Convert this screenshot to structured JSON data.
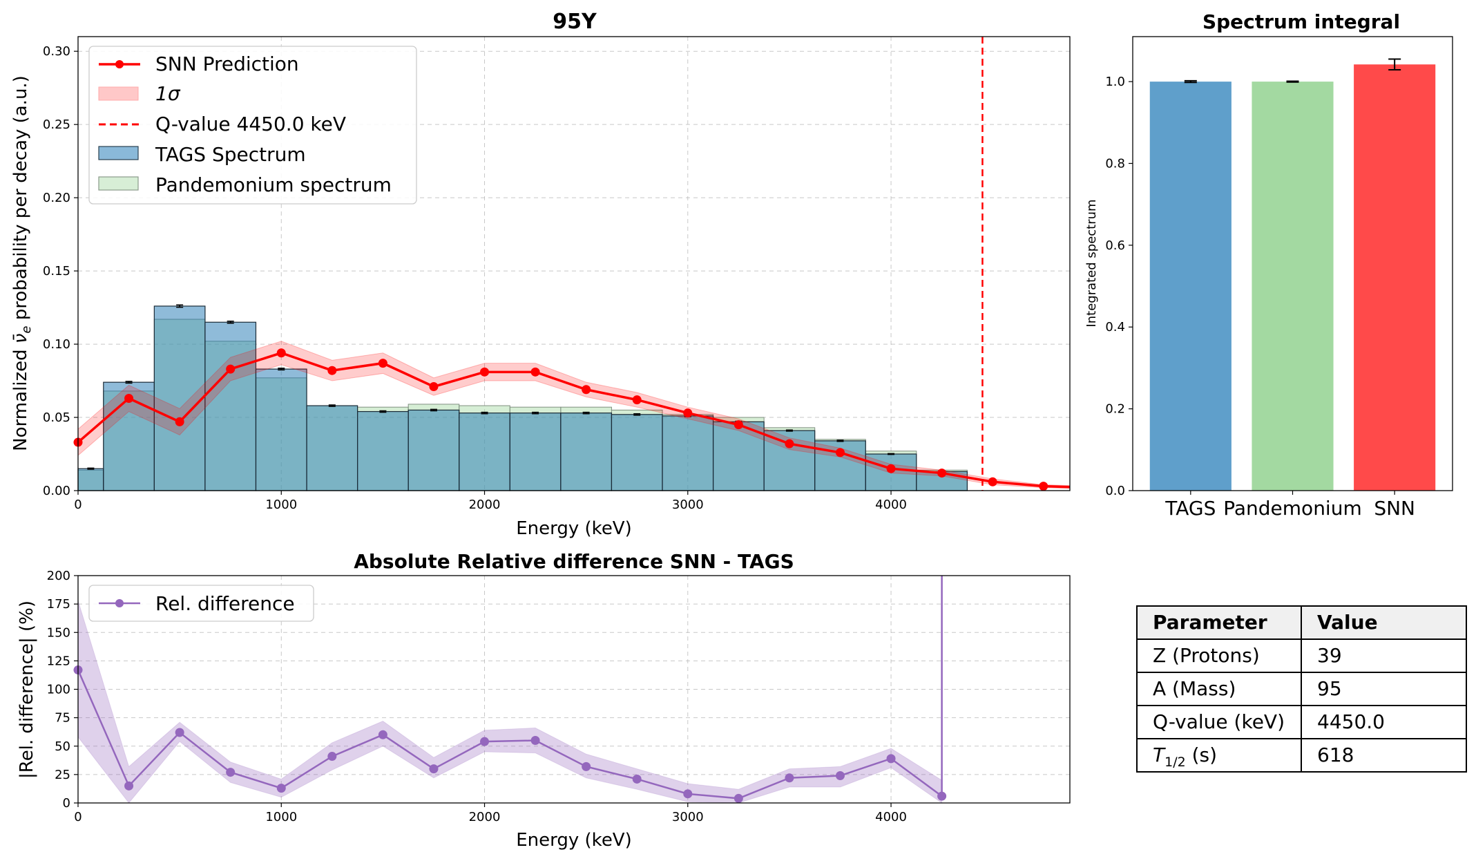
{
  "main": {
    "title": "95Y",
    "xlabel": "Energy (keV)",
    "ylabel_parts": [
      "Normalized ",
      "ν̄",
      "e",
      " probability per decay (a.u.)"
    ],
    "xlim": [
      0,
      4880
    ],
    "ylim": [
      0,
      0.31
    ],
    "xticks": [
      0,
      1000,
      2000,
      3000,
      4000
    ],
    "yticks": [
      0.0,
      0.05,
      0.1,
      0.15,
      0.2,
      0.25,
      0.3
    ],
    "ytick_labels": [
      "0.00",
      "0.05",
      "0.10",
      "0.15",
      "0.20",
      "0.25",
      "0.30"
    ],
    "legend": {
      "snn": "SNN Prediction",
      "sigma": "1σ",
      "qvalue": "Q-value 4450.0 keV",
      "tags": "TAGS Spectrum",
      "pandemonium": "Pandemonium spectrum"
    }
  },
  "integral": {
    "title": "Spectrum integral",
    "ylabel": "Integrated spectrum",
    "categories": [
      "TAGS",
      "Pandemonium",
      "SNN"
    ],
    "values": [
      1.0,
      1.0,
      1.042
    ],
    "errors": [
      0.002,
      0.001,
      0.013
    ],
    "colors": [
      "#5f9fcb",
      "#a3d9a1",
      "#ff4a4a"
    ],
    "ylim": [
      0,
      1.11
    ],
    "yticks": [
      0.0,
      0.2,
      0.4,
      0.6,
      0.8,
      1.0
    ],
    "ytick_labels": [
      "0.0",
      "0.2",
      "0.4",
      "0.6",
      "0.8",
      "1.0"
    ]
  },
  "reldiff": {
    "title": "Absolute Relative difference SNN - TAGS",
    "xlabel": "Energy (keV)",
    "ylabel": "|Rel. difference| (%)",
    "legend": "Rel. difference",
    "xlim": [
      0,
      4880
    ],
    "ylim": [
      0,
      200
    ],
    "xticks": [
      0,
      1000,
      2000,
      3000,
      4000
    ],
    "yticks": [
      0,
      25,
      50,
      75,
      100,
      125,
      150,
      175,
      200
    ]
  },
  "table": {
    "headers": [
      "Parameter",
      "Value"
    ],
    "rows": [
      [
        "Z (Protons)",
        "39"
      ],
      [
        "A (Mass)",
        "95"
      ],
      [
        "Q-value (keV)",
        "4450.0"
      ],
      [
        "T1/2 (s)",
        "618"
      ]
    ],
    "t_half_label": {
      "base": "T",
      "sub": "1/2",
      "unit": " (s)"
    }
  },
  "chart_data": [
    {
      "type": "bar",
      "title": "95Y",
      "xlabel": "Energy (keV)",
      "ylabel": "Normalized ν̄e probability per decay (a.u.)",
      "xlim": [
        0,
        4880
      ],
      "ylim": [
        0,
        0.31
      ],
      "grid": true,
      "legend_position": "top-left",
      "colors": {
        "tags": "#5f9fcb",
        "pandemonium": "#a3d9a1",
        "snn": "#ff0000",
        "sigma_band": "#ffb3b3",
        "qvalue": "#ff0000"
      },
      "bin_edges": [
        0,
        125,
        375,
        625,
        875,
        1125,
        1375,
        1625,
        1875,
        2125,
        2375,
        2625,
        2875,
        3125,
        3375,
        3625,
        3875,
        4125,
        4375
      ],
      "series": [
        {
          "name": "TAGS Spectrum",
          "kind": "histogram",
          "values": [
            0.015,
            0.074,
            0.126,
            0.115,
            0.083,
            0.058,
            0.054,
            0.055,
            0.053,
            0.053,
            0.053,
            0.052,
            0.051,
            0.047,
            0.041,
            0.034,
            0.025,
            0.013
          ],
          "errors": [
            0.0004,
            0.0006,
            0.0008,
            0.0007,
            0.0006,
            0.0005,
            0.0005,
            0.0005,
            0.0005,
            0.0005,
            0.0005,
            0.0005,
            0.0005,
            0.0004,
            0.0004,
            0.0004,
            0.0003,
            0.0003
          ]
        },
        {
          "name": "Pandemonium spectrum",
          "kind": "histogram",
          "values": [
            0.014,
            0.068,
            0.117,
            0.102,
            0.077,
            0.058,
            0.057,
            0.059,
            0.058,
            0.057,
            0.057,
            0.055,
            0.052,
            0.05,
            0.043,
            0.035,
            0.027,
            0.014
          ]
        },
        {
          "name": "SNN Prediction",
          "kind": "line",
          "x": [
            0,
            250,
            500,
            750,
            1000,
            1250,
            1500,
            1750,
            2000,
            2250,
            2500,
            2750,
            3000,
            3250,
            3500,
            3750,
            4000,
            4250,
            4500,
            4750,
            5000
          ],
          "values": [
            0.033,
            0.063,
            0.047,
            0.083,
            0.094,
            0.082,
            0.087,
            0.071,
            0.081,
            0.081,
            0.069,
            0.062,
            0.053,
            0.045,
            0.032,
            0.026,
            0.015,
            0.012,
            0.006,
            0.003,
            0.002
          ],
          "sigma": [
            0.009,
            0.009,
            0.009,
            0.008,
            0.008,
            0.007,
            0.007,
            0.006,
            0.006,
            0.006,
            0.005,
            0.005,
            0.004,
            0.004,
            0.004,
            0.003,
            0.003,
            0.002,
            0.002,
            0.001,
            0.001
          ]
        }
      ],
      "qvalue_keV": 4450.0
    },
    {
      "type": "bar",
      "title": "Spectrum integral",
      "ylabel": "Integrated spectrum",
      "categories": [
        "TAGS",
        "Pandemonium",
        "SNN"
      ],
      "values": [
        1.0,
        1.0,
        1.042
      ],
      "errors": [
        0.002,
        0.001,
        0.013
      ],
      "ylim": [
        0,
        1.11
      ]
    },
    {
      "type": "line",
      "title": "Absolute Relative difference SNN - TAGS",
      "xlabel": "Energy (keV)",
      "ylabel": "|Rel. difference| (%)",
      "xlim": [
        0,
        4880
      ],
      "ylim": [
        0,
        200
      ],
      "grid": true,
      "legend_position": "top-left",
      "color": "#9467bd",
      "series": [
        {
          "name": "Rel. difference",
          "x": [
            0,
            250,
            500,
            750,
            1000,
            1250,
            1500,
            1750,
            2000,
            2250,
            2500,
            2750,
            3000,
            3250,
            3500,
            3750,
            4000,
            4250,
            4250
          ],
          "values": [
            117,
            15,
            62,
            27,
            13,
            41,
            60,
            30,
            54,
            55,
            32,
            21,
            8,
            4,
            22,
            24,
            39,
            6,
            200
          ],
          "band_lower": [
            58,
            0,
            54,
            18,
            5,
            29,
            50,
            22,
            45,
            44,
            22,
            12,
            1,
            0,
            14,
            14,
            31,
            0,
            200
          ],
          "band_upper": [
            178,
            32,
            71,
            36,
            21,
            53,
            72,
            40,
            64,
            66,
            43,
            30,
            17,
            12,
            30,
            32,
            48,
            20,
            200
          ]
        }
      ]
    },
    {
      "type": "table",
      "columns": [
        "Parameter",
        "Value"
      ],
      "rows": [
        [
          "Z (Protons)",
          "39"
        ],
        [
          "A (Mass)",
          "95"
        ],
        [
          "Q-value (keV)",
          "4450.0"
        ],
        [
          "T1/2 (s)",
          "618"
        ]
      ]
    }
  ]
}
